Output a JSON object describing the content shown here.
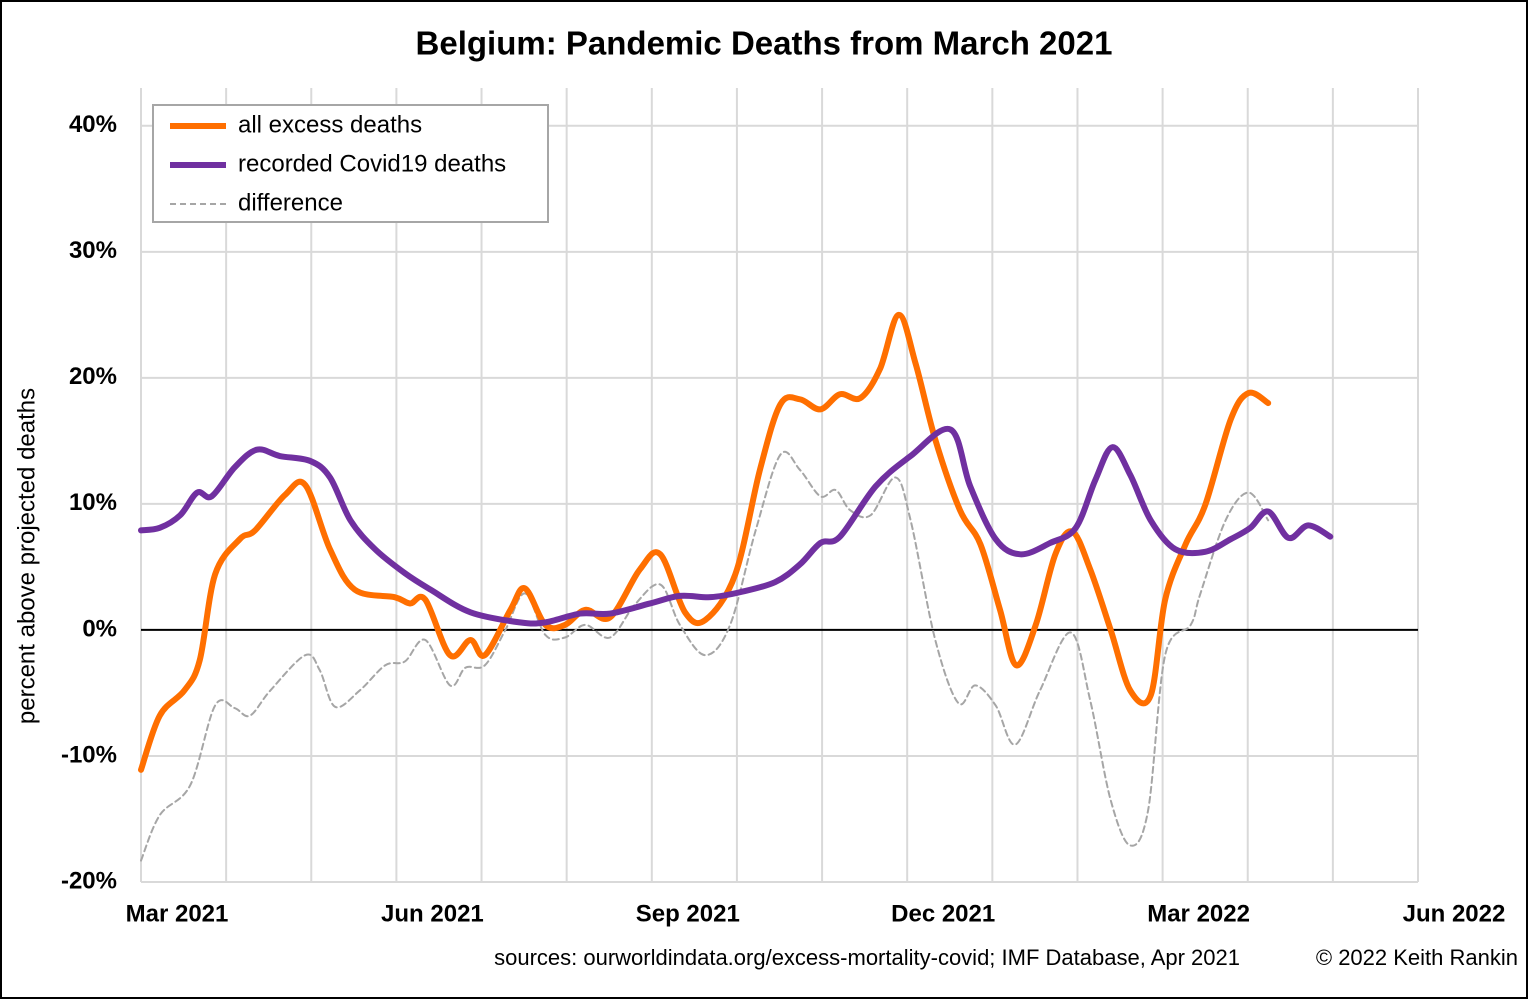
{
  "chart_data": {
    "type": "line",
    "title": "Belgium: Pandemic Deaths from March 2021",
    "ylabel": "percent above projected deaths",
    "source": "sources: ourworldindata.org/excess-mortality-covid; IMF Database, Apr 2021",
    "copyright": "© 2022 Keith Rankin",
    "xlim": [
      0,
      15
    ],
    "xticks": [
      {
        "value": 0,
        "label": "Mar 2021"
      },
      {
        "value": 3,
        "label": "Jun 2021"
      },
      {
        "value": 6,
        "label": "Sep 2021"
      },
      {
        "value": 9,
        "label": "Dec 2021"
      },
      {
        "value": 12,
        "label": "Mar 2022"
      },
      {
        "value": 15,
        "label": "Jun 2022"
      }
    ],
    "x_minor_ticks": [
      1,
      2,
      4,
      5,
      7,
      8,
      10,
      11,
      13,
      14
    ],
    "ylim": [
      -20,
      43
    ],
    "yticks": [
      {
        "value": -20,
        "label": "-20%"
      },
      {
        "value": -10,
        "label": "-10%"
      },
      {
        "value": 0,
        "label": "0%"
      },
      {
        "value": 10,
        "label": "10%"
      },
      {
        "value": 20,
        "label": "20%"
      },
      {
        "value": 30,
        "label": "30%"
      },
      {
        "value": 40,
        "label": "40%"
      }
    ],
    "grid": true,
    "legend": "upper left",
    "series": [
      {
        "name": "all excess deaths",
        "color": "#ff6f00",
        "width": 6,
        "dashed": false,
        "x": [
          0,
          0.22,
          0.51,
          0.69,
          0.87,
          1.16,
          1.34,
          1.69,
          1.93,
          2.22,
          2.51,
          2.98,
          3.16,
          3.34,
          3.63,
          3.87,
          4.04,
          4.34,
          4.51,
          4.75,
          4.98,
          5.22,
          5.51,
          5.86,
          6.1,
          6.39,
          6.63,
          6.98,
          7.27,
          7.51,
          7.74,
          7.98,
          8.21,
          8.45,
          8.68,
          8.9,
          9.1,
          9.33,
          9.62,
          9.86,
          10.09,
          10.28,
          10.51,
          10.74,
          10.94,
          11.15,
          11.39,
          11.62,
          11.86,
          12.03,
          12.27,
          12.5,
          12.8,
          13.01,
          13.24
        ],
        "values": [
          -11.1,
          -6.8,
          -4.8,
          -2.4,
          4.4,
          7.2,
          7.9,
          10.7,
          11.5,
          6.4,
          3.2,
          2.6,
          2.1,
          2.4,
          -2.0,
          -0.8,
          -2.0,
          1.6,
          3.3,
          0.4,
          0.4,
          1.6,
          1.0,
          4.8,
          6.0,
          1.4,
          0.8,
          4.4,
          12.7,
          17.9,
          18.3,
          17.5,
          18.7,
          18.4,
          20.7,
          25.0,
          21.1,
          15.1,
          9.5,
          6.8,
          1.6,
          -2.8,
          0.4,
          6.0,
          7.8,
          4.8,
          0,
          -4.8,
          -5.2,
          2.4,
          6.8,
          9.9,
          16.7,
          18.8,
          18.0
        ]
      },
      {
        "name": "recorded Covid19 deaths",
        "color": "#7030a0",
        "width": 6,
        "dashed": false,
        "x": [
          0,
          0.22,
          0.46,
          0.66,
          0.83,
          1.1,
          1.36,
          1.63,
          1.99,
          2.22,
          2.46,
          2.75,
          3.1,
          3.4,
          3.87,
          4.45,
          4.75,
          5.16,
          5.51,
          5.98,
          6.33,
          6.69,
          7.04,
          7.45,
          7.74,
          7.98,
          8.21,
          8.63,
          9.04,
          9.51,
          9.74,
          10.04,
          10.33,
          10.68,
          10.98,
          11.21,
          11.41,
          11.62,
          11.86,
          12.15,
          12.5,
          12.8,
          13.03,
          13.24,
          13.48,
          13.71,
          13.97
        ],
        "values": [
          7.9,
          8.1,
          9.1,
          10.9,
          10.6,
          12.9,
          14.3,
          13.8,
          13.4,
          12.1,
          8.7,
          6.4,
          4.5,
          3.2,
          1.4,
          0.6,
          0.6,
          1.3,
          1.3,
          2.1,
          2.7,
          2.6,
          3.0,
          3.8,
          5.2,
          6.9,
          7.4,
          11.4,
          13.8,
          15.9,
          11.4,
          7.2,
          6.0,
          6.9,
          8.1,
          11.9,
          14.5,
          12.3,
          8.7,
          6.4,
          6.2,
          7.2,
          8.1,
          9.4,
          7.3,
          8.3,
          7.4
        ]
      },
      {
        "name": "difference",
        "color": "#a6a6a6",
        "width": 2,
        "dashed": true,
        "x": [
          0,
          0.22,
          0.58,
          0.87,
          1.1,
          1.28,
          1.52,
          1.93,
          2.1,
          2.28,
          2.57,
          2.87,
          3.1,
          3.34,
          3.63,
          3.81,
          4.04,
          4.28,
          4.51,
          4.75,
          4.98,
          5.22,
          5.51,
          5.8,
          6.1,
          6.33,
          6.63,
          6.92,
          7.22,
          7.51,
          7.74,
          7.98,
          8.16,
          8.33,
          8.57,
          8.86,
          9.04,
          9.33,
          9.6,
          9.8,
          10.04,
          10.27,
          10.56,
          10.92,
          11.15,
          11.39,
          11.62,
          11.83,
          12.03,
          12.33,
          12.44,
          12.74,
          13.01,
          13.24
        ],
        "values": [
          -18.3,
          -14.7,
          -12.3,
          -6.0,
          -6.2,
          -6.8,
          -4.8,
          -2.0,
          -3.2,
          -6.1,
          -4.8,
          -2.8,
          -2.5,
          -0.8,
          -4.4,
          -3.0,
          -2.8,
          0,
          2.9,
          -0.4,
          -0.6,
          0.4,
          -0.6,
          2.0,
          3.6,
          0.4,
          -2.0,
          0.4,
          7.9,
          13.9,
          12.7,
          10.6,
          11.1,
          9.5,
          9.1,
          12.1,
          8.7,
          -0.8,
          -5.8,
          -4.4,
          -6.0,
          -9.1,
          -4.8,
          -0.2,
          -5.6,
          -13.5,
          -17.1,
          -14.3,
          -2.0,
          0.4,
          2.8,
          8.7,
          10.9,
          8.7
        ]
      }
    ]
  }
}
